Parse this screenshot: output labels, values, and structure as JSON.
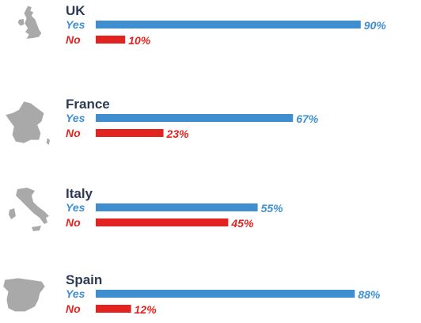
{
  "chart_data": {
    "type": "bar",
    "orientation": "horizontal",
    "colors": {
      "Yes": "#3f8fd0",
      "No": "#e2231f"
    },
    "xlim": [
      0,
      100
    ],
    "value_suffix": "%",
    "groups": [
      {
        "country": "UK",
        "map_icon": "uk-map-icon",
        "series": [
          {
            "name": "Yes",
            "value": 90
          },
          {
            "name": "No",
            "value": 10
          }
        ]
      },
      {
        "country": "France",
        "map_icon": "france-map-icon",
        "series": [
          {
            "name": "Yes",
            "value": 67
          },
          {
            "name": "No",
            "value": 23
          }
        ]
      },
      {
        "country": "Italy",
        "map_icon": "italy-map-icon",
        "series": [
          {
            "name": "Yes",
            "value": 55
          },
          {
            "name": "No",
            "value": 45
          }
        ]
      },
      {
        "country": "Spain",
        "map_icon": "spain-map-icon",
        "series": [
          {
            "name": "Yes",
            "value": 88
          },
          {
            "name": "No",
            "value": 12
          }
        ]
      }
    ]
  }
}
